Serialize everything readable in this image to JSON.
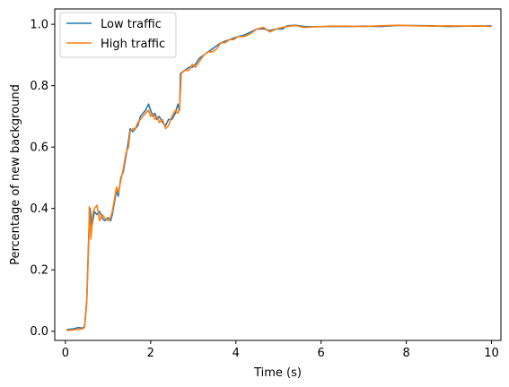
{
  "chart_data": {
    "type": "line",
    "xlabel": "Time (s)",
    "ylabel": "Percentage of new background",
    "xlim": [
      -0.25,
      10.22
    ],
    "ylim": [
      -0.03,
      1.05
    ],
    "xticks": [
      0,
      2,
      4,
      6,
      8,
      10
    ],
    "xtick_labels": [
      "0",
      "2",
      "4",
      "6",
      "8",
      "10"
    ],
    "yticks": [
      0.0,
      0.2,
      0.4,
      0.6,
      0.8,
      1.0
    ],
    "ytick_labels": [
      "0.0",
      "0.2",
      "0.4",
      "0.6",
      "0.8",
      "1.0"
    ],
    "grid": false,
    "legend_position": "top-left",
    "series": [
      {
        "name": "Low traffic",
        "color": "#1f77b4",
        "points": [
          [
            0.03,
            0.005
          ],
          [
            0.2,
            0.008
          ],
          [
            0.3,
            0.012
          ],
          [
            0.4,
            0.01
          ],
          [
            0.45,
            0.015
          ],
          [
            0.5,
            0.1
          ],
          [
            0.55,
            0.32
          ],
          [
            0.58,
            0.4
          ],
          [
            0.62,
            0.34
          ],
          [
            0.68,
            0.39
          ],
          [
            0.74,
            0.38
          ],
          [
            0.8,
            0.39
          ],
          [
            0.86,
            0.37
          ],
          [
            0.92,
            0.36
          ],
          [
            1.0,
            0.37
          ],
          [
            1.06,
            0.36
          ],
          [
            1.1,
            0.38
          ],
          [
            1.15,
            0.42
          ],
          [
            1.2,
            0.46
          ],
          [
            1.24,
            0.44
          ],
          [
            1.3,
            0.5
          ],
          [
            1.36,
            0.52
          ],
          [
            1.42,
            0.57
          ],
          [
            1.48,
            0.62
          ],
          [
            1.52,
            0.66
          ],
          [
            1.58,
            0.65
          ],
          [
            1.64,
            0.66
          ],
          [
            1.7,
            0.67
          ],
          [
            1.76,
            0.7
          ],
          [
            1.82,
            0.71
          ],
          [
            1.88,
            0.72
          ],
          [
            1.95,
            0.74
          ],
          [
            2.0,
            0.72
          ],
          [
            2.05,
            0.7
          ],
          [
            2.1,
            0.71
          ],
          [
            2.15,
            0.69
          ],
          [
            2.2,
            0.7
          ],
          [
            2.28,
            0.68
          ],
          [
            2.35,
            0.67
          ],
          [
            2.42,
            0.69
          ],
          [
            2.5,
            0.69
          ],
          [
            2.58,
            0.71
          ],
          [
            2.64,
            0.74
          ],
          [
            2.68,
            0.72
          ],
          [
            2.7,
            0.84
          ],
          [
            2.8,
            0.85
          ],
          [
            2.9,
            0.86
          ],
          [
            2.98,
            0.86
          ],
          [
            3.05,
            0.87
          ],
          [
            3.15,
            0.89
          ],
          [
            3.25,
            0.9
          ],
          [
            3.35,
            0.91
          ],
          [
            3.45,
            0.92
          ],
          [
            3.55,
            0.93
          ],
          [
            3.65,
            0.94
          ],
          [
            3.75,
            0.945
          ],
          [
            3.85,
            0.95
          ],
          [
            3.95,
            0.955
          ],
          [
            4.05,
            0.96
          ],
          [
            4.2,
            0.965
          ],
          [
            4.35,
            0.975
          ],
          [
            4.5,
            0.985
          ],
          [
            4.65,
            0.985
          ],
          [
            4.8,
            0.98
          ],
          [
            4.95,
            0.985
          ],
          [
            5.1,
            0.985
          ],
          [
            5.2,
            0.995
          ],
          [
            5.4,
            0.997
          ],
          [
            5.6,
            0.993
          ],
          [
            5.9,
            0.992
          ],
          [
            6.2,
            0.993
          ],
          [
            6.6,
            0.993
          ],
          [
            7.0,
            0.994
          ],
          [
            7.4,
            0.993
          ],
          [
            7.8,
            0.996
          ],
          [
            8.2,
            0.996
          ],
          [
            8.6,
            0.995
          ],
          [
            9.0,
            0.993
          ],
          [
            9.4,
            0.994
          ],
          [
            9.7,
            0.994
          ],
          [
            10.0,
            0.995
          ]
        ]
      },
      {
        "name": "High traffic",
        "color": "#ff7f0e",
        "points": [
          [
            0.03,
            0.002
          ],
          [
            0.2,
            0.005
          ],
          [
            0.3,
            0.006
          ],
          [
            0.4,
            0.008
          ],
          [
            0.45,
            0.012
          ],
          [
            0.5,
            0.09
          ],
          [
            0.55,
            0.3
          ],
          [
            0.56,
            0.405
          ],
          [
            0.6,
            0.3
          ],
          [
            0.64,
            0.38
          ],
          [
            0.68,
            0.4
          ],
          [
            0.74,
            0.41
          ],
          [
            0.8,
            0.36
          ],
          [
            0.86,
            0.38
          ],
          [
            0.92,
            0.37
          ],
          [
            1.0,
            0.36
          ],
          [
            1.06,
            0.37
          ],
          [
            1.1,
            0.39
          ],
          [
            1.15,
            0.43
          ],
          [
            1.2,
            0.47
          ],
          [
            1.24,
            0.45
          ],
          [
            1.3,
            0.49
          ],
          [
            1.36,
            0.53
          ],
          [
            1.42,
            0.58
          ],
          [
            1.48,
            0.6
          ],
          [
            1.52,
            0.65
          ],
          [
            1.58,
            0.66
          ],
          [
            1.64,
            0.66
          ],
          [
            1.7,
            0.68
          ],
          [
            1.76,
            0.69
          ],
          [
            1.82,
            0.7
          ],
          [
            1.88,
            0.71
          ],
          [
            1.95,
            0.72
          ],
          [
            2.0,
            0.7
          ],
          [
            2.05,
            0.71
          ],
          [
            2.1,
            0.69
          ],
          [
            2.15,
            0.7
          ],
          [
            2.2,
            0.68
          ],
          [
            2.28,
            0.69
          ],
          [
            2.35,
            0.66
          ],
          [
            2.42,
            0.67
          ],
          [
            2.5,
            0.7
          ],
          [
            2.58,
            0.72
          ],
          [
            2.64,
            0.71
          ],
          [
            2.68,
            0.73
          ],
          [
            2.72,
            0.84
          ],
          [
            2.8,
            0.85
          ],
          [
            2.9,
            0.85
          ],
          [
            2.98,
            0.87
          ],
          [
            3.05,
            0.86
          ],
          [
            3.15,
            0.88
          ],
          [
            3.25,
            0.9
          ],
          [
            3.35,
            0.91
          ],
          [
            3.45,
            0.91
          ],
          [
            3.55,
            0.92
          ],
          [
            3.65,
            0.94
          ],
          [
            3.75,
            0.94
          ],
          [
            3.85,
            0.95
          ],
          [
            3.95,
            0.95
          ],
          [
            4.05,
            0.96
          ],
          [
            4.2,
            0.96
          ],
          [
            4.35,
            0.97
          ],
          [
            4.5,
            0.985
          ],
          [
            4.65,
            0.99
          ],
          [
            4.8,
            0.975
          ],
          [
            4.95,
            0.985
          ],
          [
            5.1,
            0.99
          ],
          [
            5.2,
            0.993
          ],
          [
            5.4,
            0.996
          ],
          [
            5.6,
            0.99
          ],
          [
            5.9,
            0.992
          ],
          [
            6.2,
            0.994
          ],
          [
            6.6,
            0.994
          ],
          [
            7.0,
            0.993
          ],
          [
            7.4,
            0.995
          ],
          [
            7.8,
            0.997
          ],
          [
            8.2,
            0.995
          ],
          [
            8.6,
            0.994
          ],
          [
            9.0,
            0.995
          ],
          [
            9.4,
            0.994
          ],
          [
            9.7,
            0.995
          ],
          [
            10.0,
            0.993
          ]
        ]
      }
    ]
  }
}
